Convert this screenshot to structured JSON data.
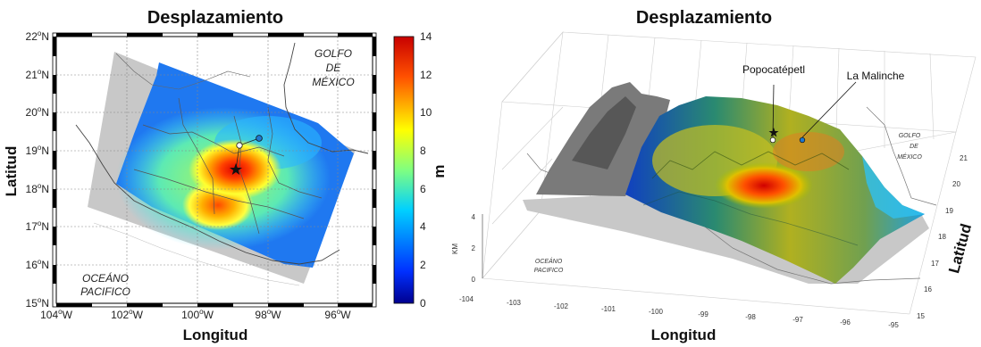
{
  "chart_data": [
    {
      "type": "heatmap",
      "title": "Desplazamiento",
      "xlabel": "Longitud",
      "ylabel": "Latitud",
      "xlim": [
        -104,
        -95
      ],
      "ylim": [
        15,
        22
      ],
      "x_ticks": [
        "104°W",
        "102°W",
        "100°W",
        "98°W",
        "96°W"
      ],
      "x_tick_values": [
        -104,
        -102,
        -100,
        -98,
        -96
      ],
      "y_ticks": [
        "15°N",
        "16°N",
        "17°N",
        "18°N",
        "19°N",
        "20°N",
        "21°N",
        "22°N"
      ],
      "y_tick_values": [
        15,
        16,
        17,
        18,
        19,
        20,
        21,
        22
      ],
      "grid": true,
      "colorbar": {
        "label": "m",
        "range": [
          0,
          14
        ],
        "ticks": [
          "0",
          "2",
          "4",
          "6",
          "8",
          "10",
          "12",
          "14"
        ],
        "tick_values": [
          0,
          2,
          4,
          6,
          8,
          10,
          12,
          14
        ]
      },
      "region_labels": [
        {
          "lines": [
            "GOLFO",
            "DE",
            "MÉXICO"
          ],
          "lon": -97.1,
          "lat": 20.9
        },
        {
          "lines": [
            "OCEÁNO",
            "PACIFICO"
          ],
          "lon": -102.9,
          "lat": 15.4
        }
      ],
      "markers": [
        {
          "kind": "star",
          "lon": -98.75,
          "lat": 18.4
        },
        {
          "kind": "white-dot",
          "lon": -98.62,
          "lat": 19.02
        },
        {
          "kind": "blue-dot",
          "lon": -98.03,
          "lat": 19.23
        }
      ],
      "peaks": [
        {
          "lon": -98.7,
          "lat": 18.4,
          "value": 14
        },
        {
          "lon": -99.6,
          "lat": 17.4,
          "value": 8
        }
      ]
    },
    {
      "type": "surface",
      "title": "Desplazamiento",
      "xlabel": "Longitud",
      "ylabel": "Latitud",
      "zlabel": "KM",
      "x_ticks": [
        "-104",
        "-103",
        "-102",
        "-101",
        "-100",
        "-99",
        "-98",
        "-97",
        "-96",
        "-95"
      ],
      "y_ticks": [
        "15",
        "16",
        "17",
        "18",
        "19",
        "20",
        "21"
      ],
      "z_ticks": [
        "0",
        "2",
        "4"
      ],
      "annotations": [
        "Popocatépetl",
        "La Malinche"
      ],
      "region_labels": [
        {
          "lines": [
            "GOLFO",
            "DE",
            "MÉXICO"
          ]
        },
        {
          "lines": [
            "OCEÁNO",
            "PACIFICO"
          ]
        }
      ]
    }
  ]
}
